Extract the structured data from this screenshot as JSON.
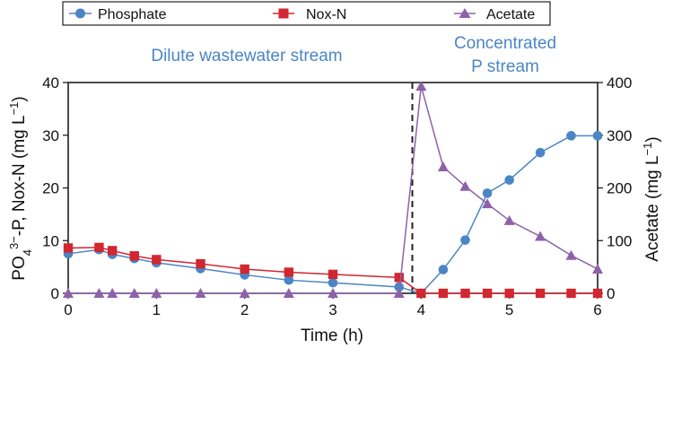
{
  "chart_data": {
    "type": "line",
    "legend": {
      "placement": "top"
    },
    "x": {
      "label": "Time (h)",
      "range": [
        0,
        6
      ],
      "ticks": [
        "0",
        "1",
        "2",
        "3",
        "4",
        "5",
        "6"
      ]
    },
    "y_left": {
      "label_main": "PO",
      "label_sub": "4",
      "label_sup": "3−",
      "label_mid": "-P, Nox-N (mg L",
      "label_sup2": "−1",
      "label_end": ")",
      "range": [
        0,
        40
      ],
      "ticks": [
        "0",
        "10",
        "20",
        "30",
        "40"
      ]
    },
    "y_right": {
      "label": "Acetate (mg L",
      "label_sup": "−1",
      "label_end": ")",
      "range": [
        0,
        400
      ],
      "ticks": [
        "0",
        "100",
        "200",
        "300",
        "400"
      ]
    },
    "regions": [
      {
        "label_lines": [
          "Dilute wastewater stream"
        ]
      },
      {
        "label_lines": [
          "Concentrated",
          "P stream"
        ]
      }
    ],
    "divider_x": 3.9,
    "series": [
      {
        "name": "Phosphate",
        "axis": "left",
        "color": "#4a86c5",
        "marker": "circle",
        "points": [
          [
            0,
            7.5
          ],
          [
            0.35,
            8.3
          ],
          [
            0.5,
            7.4
          ],
          [
            0.75,
            6.6
          ],
          [
            1.0,
            5.8
          ],
          [
            1.5,
            4.7
          ],
          [
            2.0,
            3.5
          ],
          [
            2.5,
            2.5
          ],
          [
            3.0,
            2.0
          ],
          [
            3.75,
            1.2
          ],
          [
            4.0,
            0
          ],
          [
            4.25,
            4.5
          ],
          [
            4.5,
            10.1
          ],
          [
            4.75,
            19.0
          ],
          [
            5.0,
            21.5
          ],
          [
            5.35,
            26.7
          ],
          [
            5.7,
            29.9
          ],
          [
            6.0,
            29.9
          ]
        ]
      },
      {
        "name": "Nox-N",
        "axis": "left",
        "color": "#d22630",
        "marker": "square",
        "points": [
          [
            0,
            8.6
          ],
          [
            0.35,
            8.7
          ],
          [
            0.5,
            8.1
          ],
          [
            0.75,
            7.1
          ],
          [
            1.0,
            6.4
          ],
          [
            1.5,
            5.6
          ],
          [
            2.0,
            4.6
          ],
          [
            2.5,
            4.0
          ],
          [
            3.0,
            3.6
          ],
          [
            3.75,
            3.0
          ],
          [
            4.0,
            0
          ],
          [
            4.25,
            0
          ],
          [
            4.5,
            0
          ],
          [
            4.75,
            0
          ],
          [
            5.0,
            0
          ],
          [
            5.35,
            0
          ],
          [
            5.7,
            0
          ],
          [
            6.0,
            0
          ]
        ]
      },
      {
        "name": "Acetate",
        "axis": "right",
        "color": "#8e62a9",
        "marker": "triangle",
        "points": [
          [
            0,
            0
          ],
          [
            0.35,
            0
          ],
          [
            0.5,
            0
          ],
          [
            0.75,
            0
          ],
          [
            1.0,
            0
          ],
          [
            1.5,
            0
          ],
          [
            2.0,
            0
          ],
          [
            2.5,
            0
          ],
          [
            3.0,
            0
          ],
          [
            3.75,
            0
          ],
          [
            4.0,
            393
          ],
          [
            4.25,
            240
          ],
          [
            4.5,
            203
          ],
          [
            4.75,
            170
          ],
          [
            5.0,
            138
          ],
          [
            5.35,
            108
          ],
          [
            5.7,
            72
          ],
          [
            6.0,
            46
          ]
        ]
      }
    ]
  }
}
